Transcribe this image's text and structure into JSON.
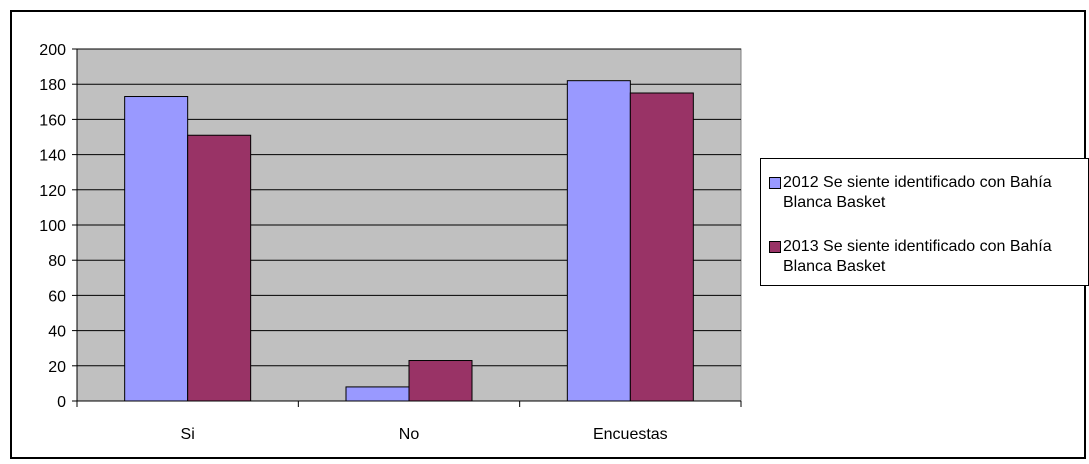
{
  "chart_data": {
    "type": "bar",
    "categories": [
      "Si",
      "No",
      "Encuestas"
    ],
    "series": [
      {
        "name": "2012 Se siente identificado con Bahía Blanca Basket",
        "values": [
          173,
          8,
          182
        ],
        "color": "#9999ff"
      },
      {
        "name": "2013 Se siente identificado con Bahía Blanca Basket",
        "values": [
          151,
          23,
          175
        ],
        "color": "#993366"
      }
    ],
    "title": "",
    "xlabel": "",
    "ylabel": "",
    "ylim": [
      0,
      200
    ],
    "yticks": [
      "0",
      "20",
      "40",
      "60",
      "80",
      "100",
      "120",
      "140",
      "160",
      "180",
      "200"
    ],
    "grid": true,
    "plot_background": "#c0c0c0",
    "legend_position": "right"
  }
}
